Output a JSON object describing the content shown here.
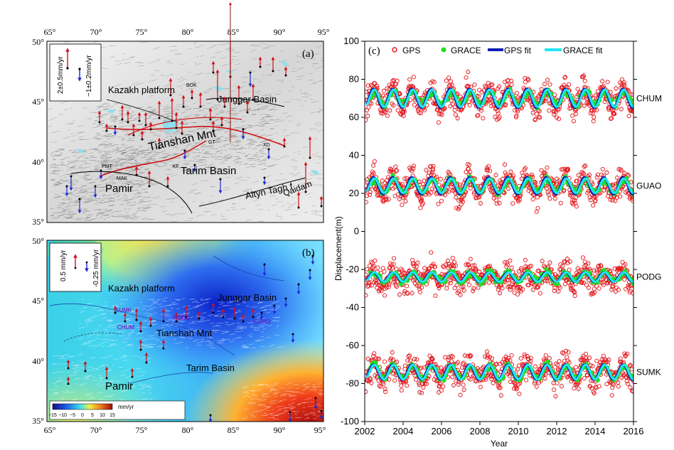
{
  "map_a": {
    "panel_label": "(a)",
    "lon_ticks": [
      "65°",
      "70°",
      "75°",
      "80°",
      "85°",
      "90°",
      "95°"
    ],
    "lat_ticks": [
      "50°",
      "45°",
      "40°",
      "35°"
    ],
    "legend": {
      "up": "2±0.5mm/yr",
      "down": "−1±0.2mm/yr"
    },
    "places": {
      "kazakh": "Kazakh platform",
      "junggar": "Junggar Basin",
      "tianshan": "Tianshan Mnt",
      "tarim": "Tarim Basin",
      "altyn": "Altyn Tagh f",
      "pamir": "Pamir",
      "qaidam": "Qaidam",
      "bok": "BOK",
      "pmt": "PMT",
      "mak": "MAK",
      "kf": "KF",
      "xd": "XD",
      "gt": "GT"
    }
  },
  "map_b": {
    "panel_label": "(b)",
    "lon_ticks": [
      "65°",
      "70°",
      "75°",
      "80°",
      "85°",
      "90°",
      "95°"
    ],
    "lat_ticks": [
      "50°",
      "45°",
      "40°",
      "35°"
    ],
    "legend": {
      "up": "0.5 mm/yr",
      "down": "-0.25 mm/yr"
    },
    "places": {
      "kazakh": "Kazakh platform",
      "junggar": "Junggar Basin",
      "tianshan": "Tianshan Mnt",
      "tarim": "Tarim Basin",
      "pamir": "Pamir"
    },
    "stations": {
      "sumk": "SUMK",
      "chum": "CHUM",
      "podg": "PODG",
      "guao": "GUAO"
    },
    "colorbar": {
      "ticks": [
        "−15",
        "−10",
        "−5",
        "0",
        "5",
        "10",
        "15"
      ],
      "unit": "mm/yr"
    }
  },
  "chart_data": {
    "type": "scatter",
    "panel_label": "(c)",
    "title": "",
    "xlabel": "Year",
    "ylabel": "Displacement(m)",
    "xlim": [
      2002,
      2016
    ],
    "ylim": [
      -100,
      100
    ],
    "x_ticks": [
      "2002",
      "2004",
      "2006",
      "2008",
      "2010",
      "2012",
      "2014",
      "2016"
    ],
    "y_ticks": [
      "100",
      "80",
      "60",
      "40",
      "20",
      "0",
      "-20",
      "-40",
      "-60",
      "-80",
      "-100"
    ],
    "legend": [
      "GPS",
      "GRACE",
      "GPS fit",
      "GRACE fit"
    ],
    "series_style": {
      "gps": "#e8141a",
      "grace": "#22dd22",
      "gps_fit": "#0a1fb4",
      "grace_fit": "#22e6f0"
    },
    "stations": [
      {
        "name": "CHUM",
        "offset": 70,
        "gps_amp": 5,
        "grace_amp": 3.5,
        "grace_fit_amp": 4.5
      },
      {
        "name": "GUAO",
        "offset": 24,
        "gps_amp": 4.5,
        "grace_amp": 3.5,
        "grace_fit_amp": 3.8
      },
      {
        "name": "PODG",
        "offset": -24,
        "gps_amp": 2.5,
        "grace_amp": 2.5,
        "grace_fit_amp": 2.5
      },
      {
        "name": "SUMK",
        "offset": -74,
        "gps_amp": 4,
        "grace_amp": 3.5,
        "grace_fit_amp": 3.8
      }
    ]
  }
}
